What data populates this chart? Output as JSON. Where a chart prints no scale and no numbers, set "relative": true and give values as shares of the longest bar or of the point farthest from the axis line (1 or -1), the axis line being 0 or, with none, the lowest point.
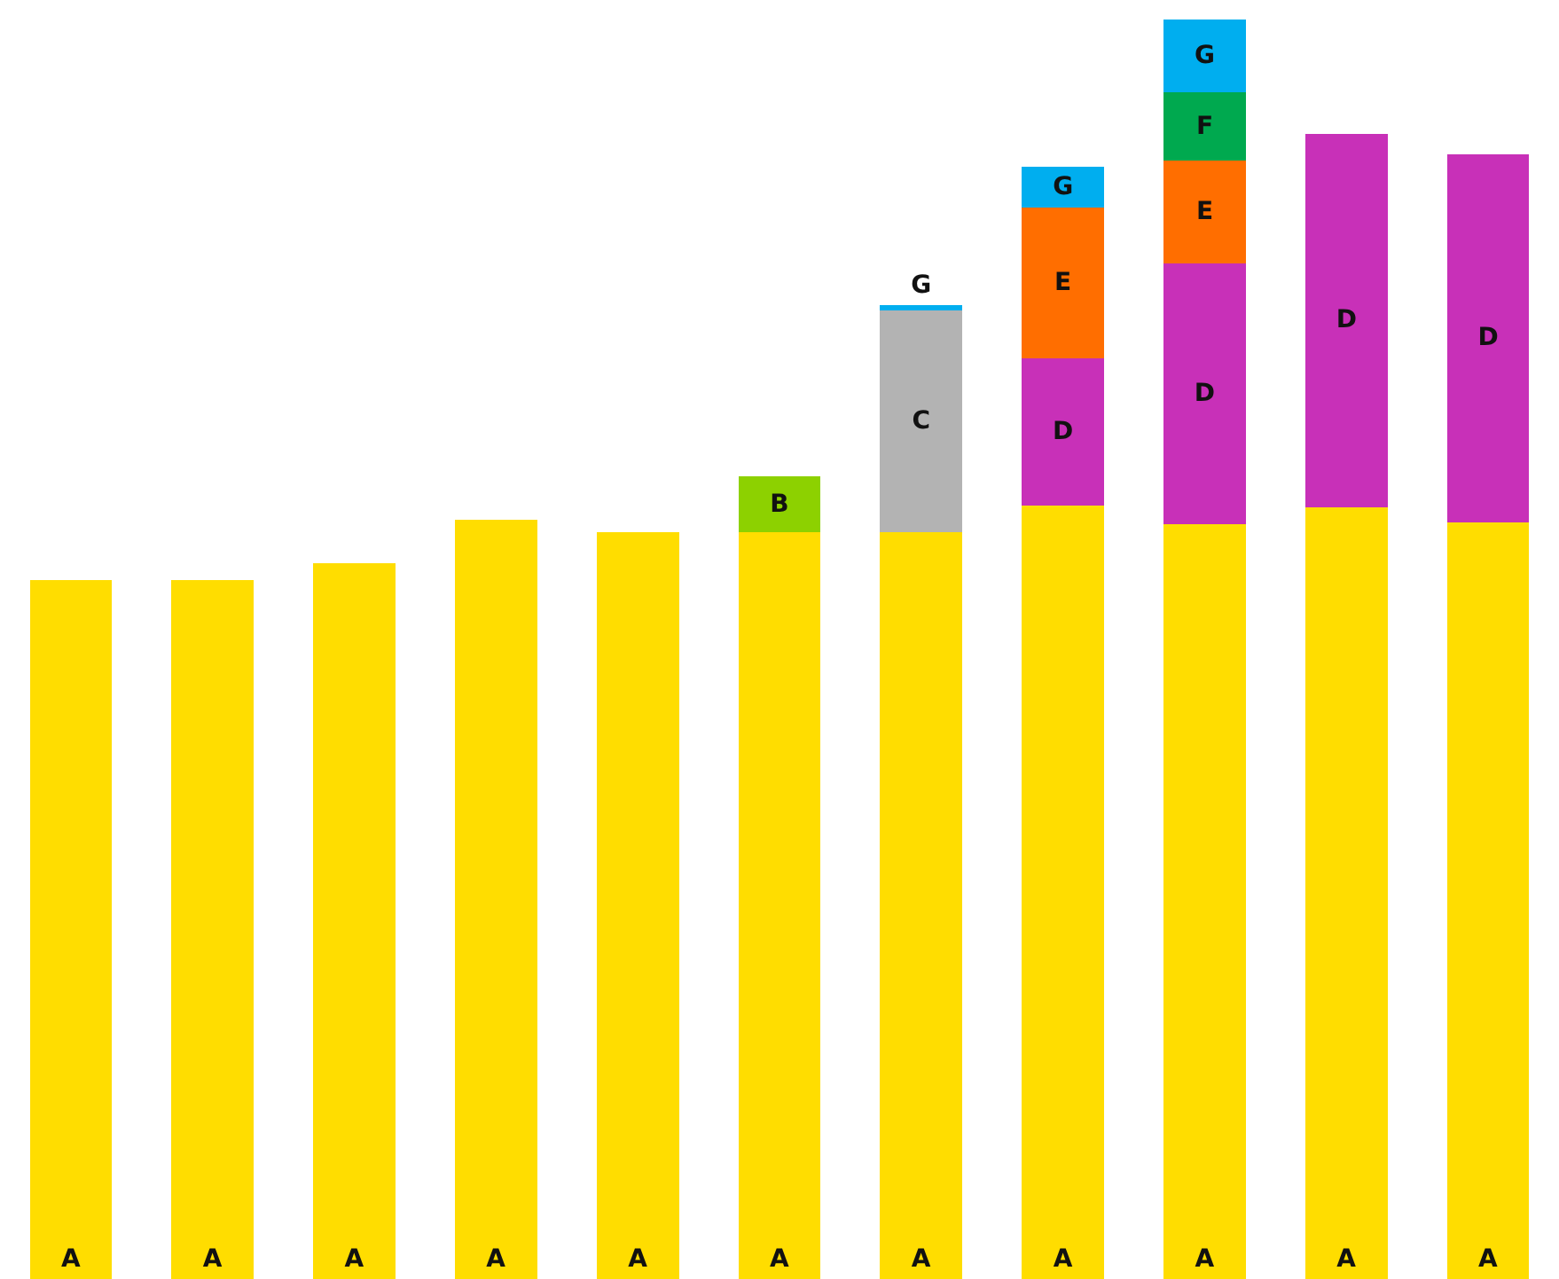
{
  "chart_data": {
    "type": "bar",
    "stacked": true,
    "relative": true,
    "legend": false,
    "categories": [
      null,
      null,
      null,
      null,
      null,
      null,
      null,
      null,
      null,
      null,
      null
    ],
    "series": [
      {
        "name": "A",
        "color": "#ffdd00",
        "values": [
          0.555,
          0.555,
          0.568,
          0.603,
          0.593,
          0.593,
          0.593,
          0.614,
          0.599,
          0.613,
          0.601
        ]
      },
      {
        "name": "B",
        "color": "#8dd100",
        "values": [
          null,
          null,
          null,
          null,
          null,
          0.044,
          null,
          null,
          null,
          null,
          null
        ]
      },
      {
        "name": "C",
        "color": "#b3b3b3",
        "values": [
          null,
          null,
          null,
          null,
          null,
          null,
          0.176,
          null,
          null,
          null,
          null
        ]
      },
      {
        "name": "D",
        "color": "#c830b8",
        "values": [
          null,
          null,
          null,
          null,
          null,
          null,
          null,
          0.117,
          0.207,
          0.296,
          0.292
        ]
      },
      {
        "name": "E",
        "color": "#ff6e00",
        "values": [
          null,
          null,
          null,
          null,
          null,
          null,
          null,
          0.12,
          0.082,
          null,
          null
        ]
      },
      {
        "name": "F",
        "color": "#00a94f",
        "values": [
          null,
          null,
          null,
          null,
          null,
          null,
          null,
          null,
          0.054,
          null,
          null
        ]
      },
      {
        "name": "G",
        "color": "#00aeef",
        "values": [
          null,
          null,
          null,
          null,
          null,
          null,
          0.004,
          0.032,
          0.058,
          null,
          null
        ]
      }
    ]
  }
}
